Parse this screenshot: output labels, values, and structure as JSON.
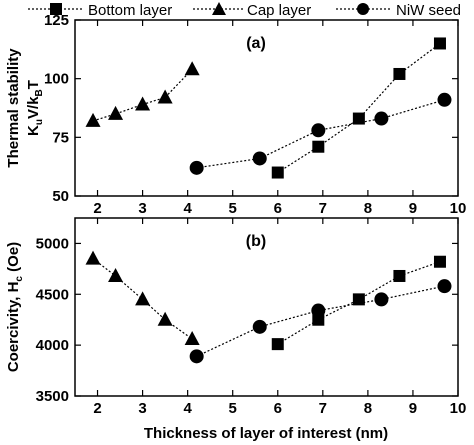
{
  "chart_data": [
    {
      "type": "line",
      "panel_label": "(a)",
      "ylabel_line1": "Thermal stability",
      "ylabel_line2": "K",
      "ylabel_sub_u": "u",
      "ylabel_mid": "V/k",
      "ylabel_sub_B": "B",
      "ylabel_end": "T",
      "xlim": [
        1.5,
        10
      ],
      "ylim": [
        50,
        125
      ],
      "yticks": [
        50,
        75,
        100,
        125
      ],
      "ytick_labels": [
        "50",
        "75",
        "100",
        "125"
      ],
      "series": [
        {
          "name": "Bottom layer",
          "marker": "square",
          "x": [
            6.0,
            6.9,
            7.8,
            8.7,
            9.6
          ],
          "y": [
            60,
            71,
            83,
            102,
            115
          ]
        },
        {
          "name": "Cap layer",
          "marker": "triangle",
          "x": [
            1.9,
            2.4,
            3.0,
            3.5,
            4.1
          ],
          "y": [
            82,
            85,
            89,
            92,
            104
          ]
        },
        {
          "name": "NiW seed",
          "marker": "circle",
          "x": [
            4.2,
            5.6,
            6.9,
            8.3,
            9.7
          ],
          "y": [
            62,
            66,
            78,
            83,
            91
          ]
        }
      ]
    },
    {
      "type": "line",
      "panel_label": "(b)",
      "ylabel": "Coercivity, H",
      "ylabel_sub": "c",
      "ylabel_unit": " (Oe)",
      "xlabel": "Thickness of layer of interest (nm)",
      "xlim": [
        1.5,
        10
      ],
      "ylim": [
        3500,
        5250
      ],
      "xticks": [
        2,
        3,
        4,
        5,
        6,
        7,
        8,
        9,
        10
      ],
      "xtick_labels": [
        "2",
        "3",
        "4",
        "5",
        "6",
        "7",
        "8",
        "9",
        "10"
      ],
      "yticks": [
        3500,
        4000,
        4500,
        5000
      ],
      "ytick_labels": [
        "3500",
        "4000",
        "4500",
        "5000"
      ],
      "series": [
        {
          "name": "Bottom layer",
          "marker": "square",
          "x": [
            6.0,
            6.9,
            7.8,
            8.7,
            9.6
          ],
          "y": [
            4010,
            4250,
            4450,
            4680,
            4820
          ]
        },
        {
          "name": "Cap layer",
          "marker": "triangle",
          "x": [
            1.9,
            2.4,
            3.0,
            3.5,
            4.1
          ],
          "y": [
            4850,
            4680,
            4450,
            4250,
            4060
          ]
        },
        {
          "name": "NiW seed",
          "marker": "circle",
          "x": [
            4.2,
            5.6,
            6.9,
            8.3,
            9.7
          ],
          "y": [
            3890,
            4180,
            4340,
            4450,
            4580
          ]
        }
      ]
    }
  ],
  "legend": [
    "Bottom layer",
    "Cap layer",
    "NiW seed"
  ],
  "legend_position": "top"
}
